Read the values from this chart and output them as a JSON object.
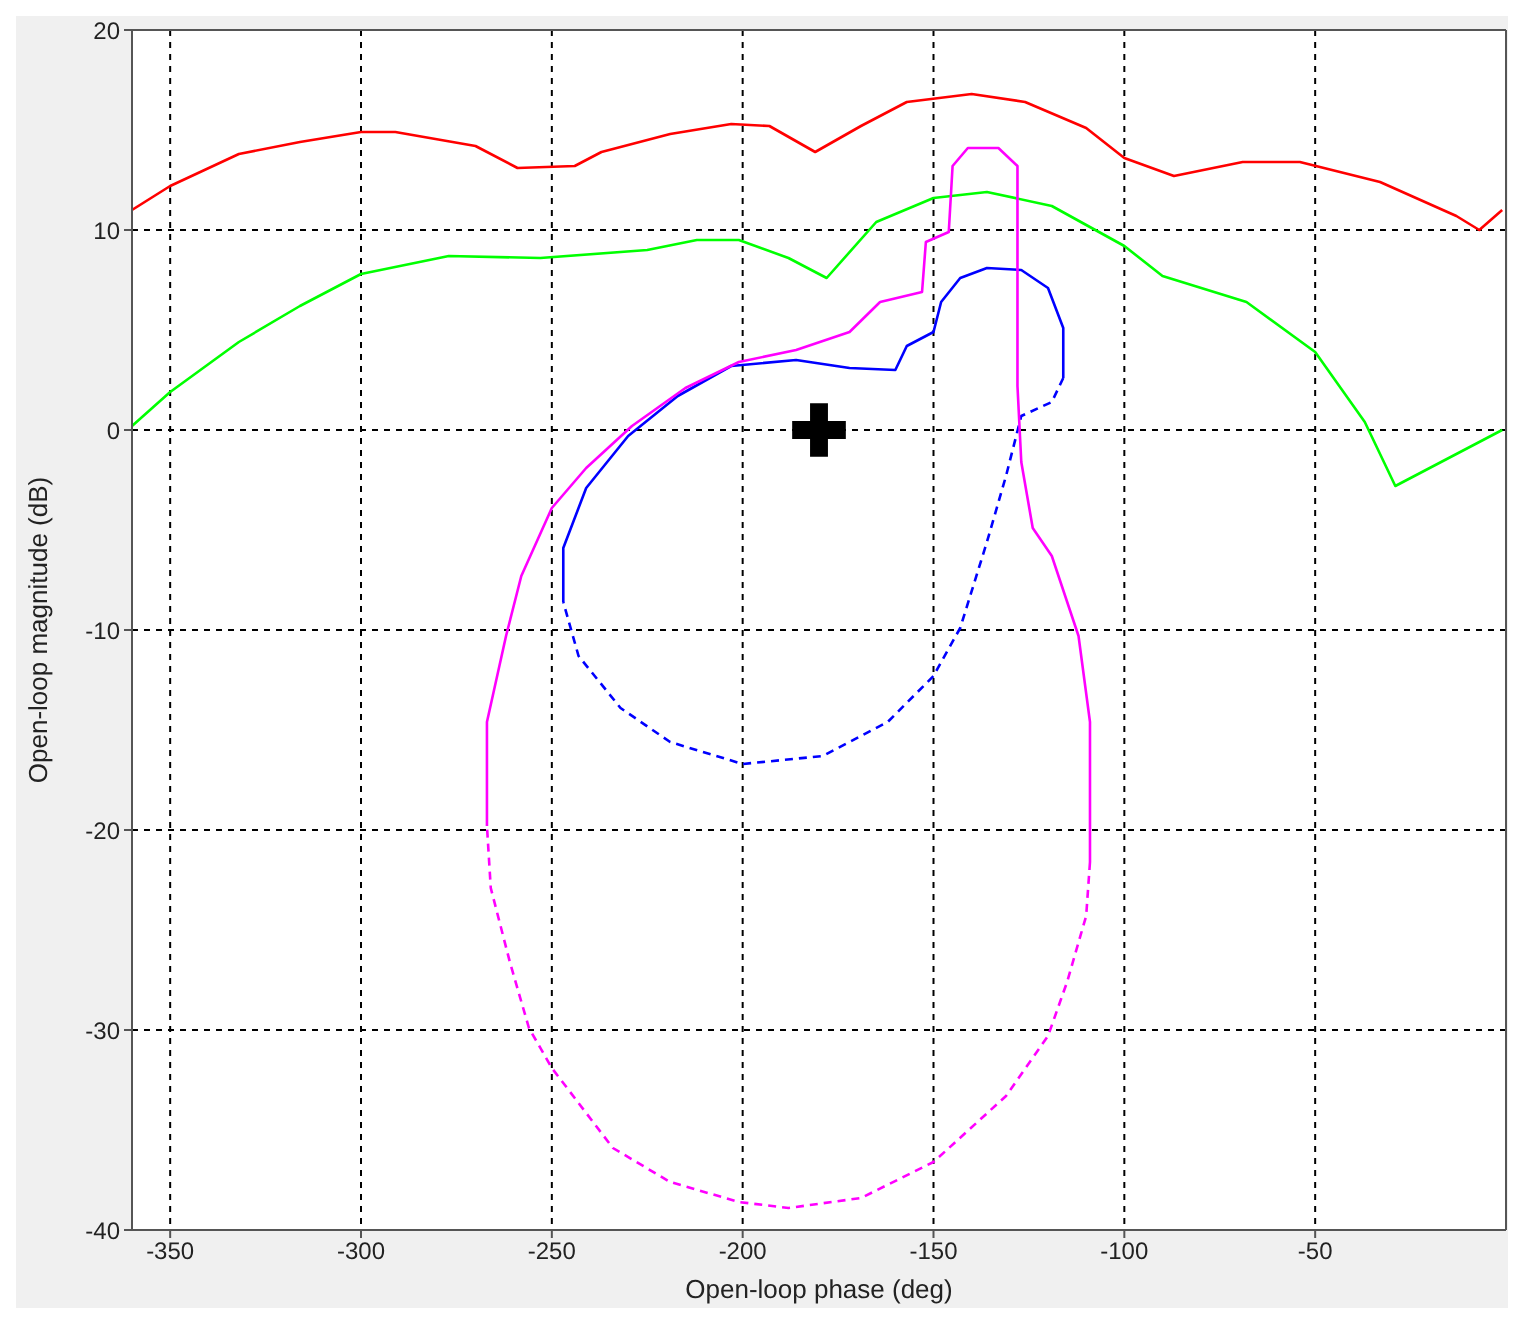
{
  "chart_data": {
    "type": "line",
    "xlabel": "Open-loop phase (deg)",
    "ylabel": "Open-loop magnitude (dB)",
    "xlim": [
      -360,
      0
    ],
    "xticks": [
      -350,
      -300,
      -250,
      -200,
      -150,
      -100,
      -50
    ],
    "ylim": [
      -40,
      20
    ],
    "yticks": [
      -40,
      -30,
      -20,
      -10,
      0,
      10,
      20
    ],
    "grid": true,
    "marker": "none",
    "line_style": "solid",
    "series": [
      {
        "color": "#ff0000",
        "x": [
          -360,
          -350,
          -332,
          -316,
          -300,
          -291,
          -270,
          -259,
          -244,
          -237,
          -219,
          -203,
          -193,
          -181,
          -169,
          -157,
          -140,
          -126,
          -110,
          -100,
          -87,
          -69,
          -54,
          -33,
          -13,
          -7,
          -1
        ],
        "values": [
          11,
          12.2,
          13.8,
          14.4,
          14.9,
          14.9,
          14.2,
          13.1,
          13.2,
          13.9,
          14.8,
          15.3,
          15.2,
          13.9,
          15.2,
          16.4,
          16.8,
          16.4,
          15.1,
          13.6,
          12.7,
          13.4,
          13.4,
          12.4,
          10.7,
          10,
          11
        ]
      },
      {
        "color": "#00ff00",
        "x": [
          -360,
          -350,
          -332,
          -316,
          -300,
          -277,
          -253,
          -225,
          -212,
          -201,
          -188,
          -178,
          -165,
          -150,
          -136,
          -119,
          -100,
          -90,
          -68,
          -50,
          -37,
          -29,
          -1
        ],
        "values": [
          0.2,
          1.9,
          4.4,
          6.2,
          7.8,
          8.7,
          8.6,
          9,
          9.5,
          9.5,
          8.6,
          7.6,
          10.4,
          11.6,
          11.9,
          11.2,
          9.2,
          7.7,
          6.4,
          3.9,
          0.4,
          -2.8,
          0
        ]
      },
      {
        "color": "#0000ff",
        "x": [
          -247,
          -247,
          -241,
          -230,
          -217,
          -203,
          -186,
          -172,
          -160,
          -157,
          -150,
          -148,
          -143,
          -136,
          -127,
          -120,
          -116,
          -116
        ],
        "values": [
          -8.6,
          -5.9,
          -2.9,
          -0.3,
          1.7,
          3.2,
          3.5,
          3.1,
          3,
          4.2,
          4.9,
          6.4,
          7.6,
          8.1,
          8,
          7.1,
          5.1,
          2.6
        ]
      },
      {
        "color": "#0000ff",
        "line_style": "dashed",
        "x": [
          -116,
          -119,
          -127,
          -131,
          -136,
          -143,
          -150,
          -162,
          -179,
          -200,
          -219,
          -232,
          -243,
          -247
        ],
        "values": [
          2.6,
          1.4,
          0.7,
          -2.3,
          -5.6,
          -9.9,
          -12.3,
          -14.6,
          -16.3,
          -16.7,
          -15.6,
          -13.9,
          -11.3,
          -8.6
        ]
      },
      {
        "color": "#ff00ff",
        "x": [
          -267,
          -267,
          -262,
          -258,
          -250,
          -241,
          -229,
          -215,
          -201,
          -186,
          -172,
          -164,
          -153,
          -152,
          -146,
          -145,
          -141,
          -133,
          -128,
          -128,
          -127,
          -124,
          -119,
          -112,
          -109,
          -109
        ],
        "values": [
          -19.8,
          -14.6,
          -10.3,
          -7.3,
          -3.9,
          -1.9,
          0.2,
          2.1,
          3.4,
          4,
          4.9,
          6.4,
          6.9,
          9.4,
          9.9,
          13.2,
          14.1,
          14.1,
          13.2,
          2.2,
          -1.6,
          -4.9,
          -6.3,
          -10.3,
          -14.6,
          -21.6
        ]
      },
      {
        "color": "#ff00ff",
        "line_style": "dashed",
        "x": [
          -109,
          -110,
          -115,
          -120,
          -131,
          -150,
          -169,
          -188,
          -201,
          -219,
          -234,
          -250,
          -256,
          -261,
          -266,
          -267
        ],
        "values": [
          -21.6,
          -24.3,
          -27.6,
          -30.3,
          -33.3,
          -36.6,
          -38.4,
          -38.9,
          -38.6,
          -37.6,
          -35.9,
          -31.9,
          -29.9,
          -26.6,
          -22.9,
          -19.8
        ]
      },
      {
        "type": "scatter",
        "color": "#000000",
        "marker": "cross",
        "x": [
          -180
        ],
        "values": [
          0
        ]
      }
    ]
  }
}
